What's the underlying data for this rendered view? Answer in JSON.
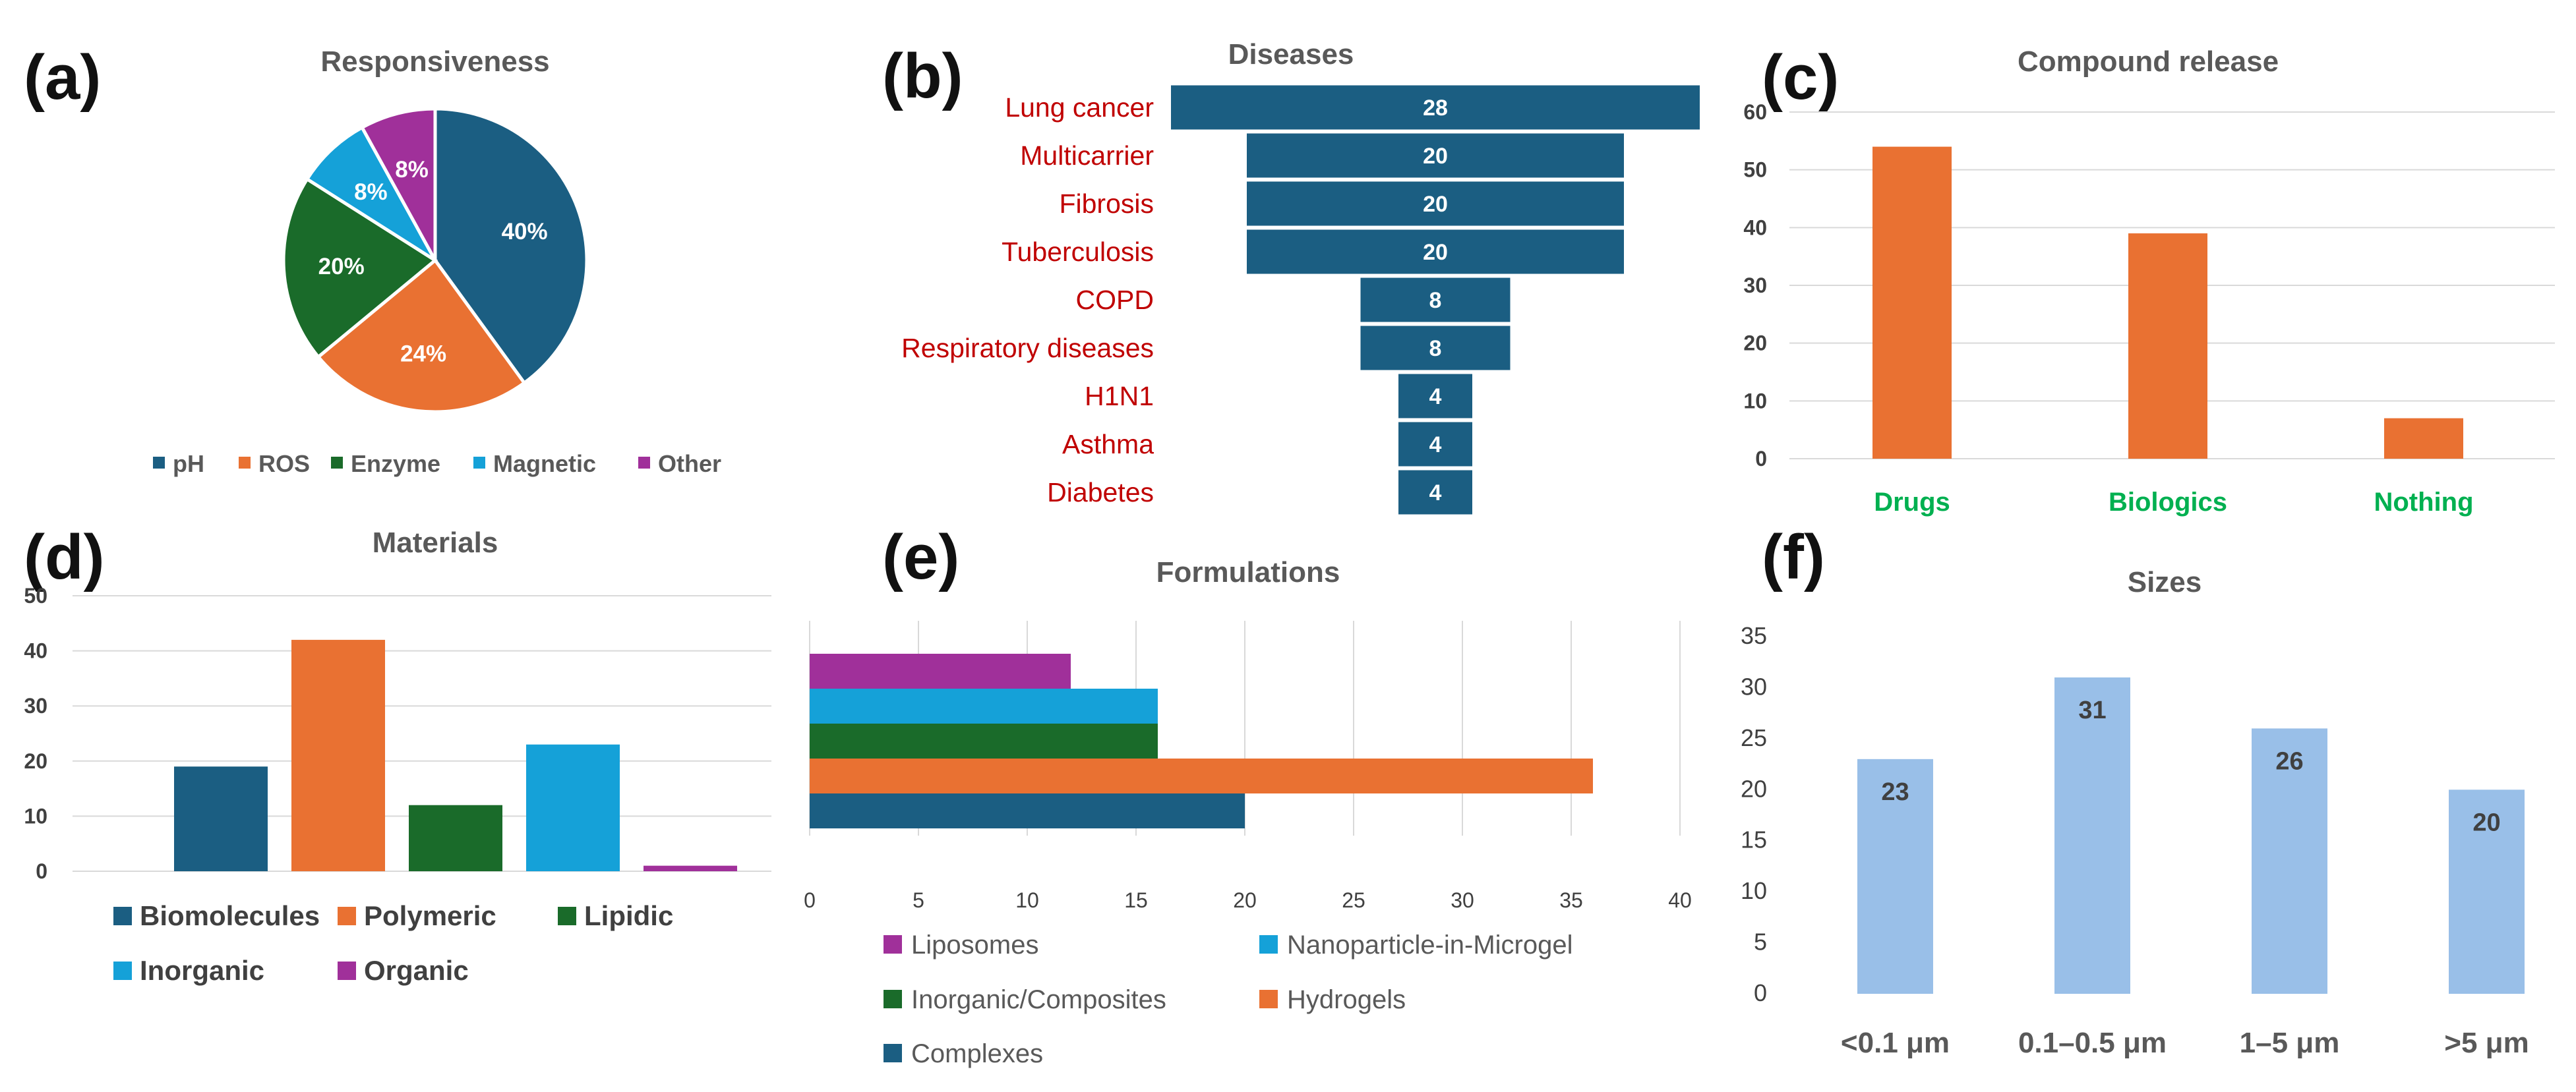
{
  "panel_labels": [
    "(a)",
    "(b)",
    "(c)",
    "(d)",
    "(e)",
    "(f)"
  ],
  "colors": {
    "blue": "#1b5e82",
    "orange": "#e97132",
    "green": "#1a6b2a",
    "cyan": "#15a1d8",
    "purple": "#a0309a",
    "lightblue": "#99bfe8",
    "red": "#c00000",
    "bright_green": "#00b050"
  },
  "chart_data": [
    {
      "type": "pie",
      "title": "Responsiveness",
      "labels": [
        "pH",
        "ROS",
        "Enzyme",
        "Magnetic",
        "Other"
      ],
      "values": [
        40,
        24,
        20,
        8,
        8
      ],
      "data_labels": [
        "40%",
        "24%",
        "20%",
        "8%",
        "8%"
      ],
      "legend": "bottom"
    },
    {
      "type": "bar",
      "subtype": "funnel",
      "title": "Diseases",
      "categories": [
        "Lung cancer",
        "Multicarrier",
        "Fibrosis",
        "Tuberculosis",
        "COPD",
        "Respiratory diseases",
        "H1N1",
        "Asthma",
        "Diabetes"
      ],
      "values": [
        28,
        20,
        20,
        20,
        8,
        8,
        4,
        4,
        4
      ]
    },
    {
      "type": "bar",
      "title": "Compound release",
      "categories": [
        "Drugs",
        "Biologics",
        "Nothing"
      ],
      "values": [
        54,
        39,
        7
      ],
      "ylim": [
        0,
        60
      ],
      "yticks": [
        "0",
        "10",
        "20",
        "30",
        "40",
        "50",
        "60"
      ],
      "grid": true
    },
    {
      "type": "bar",
      "title": "Materials",
      "categories": [
        "Biomolecules",
        "Polymeric",
        "Lipidic",
        "Inorganic",
        "Organic"
      ],
      "values": [
        19,
        42,
        12,
        23,
        1
      ],
      "ylim": [
        0,
        50
      ],
      "yticks": [
        "0",
        "10",
        "20",
        "30",
        "40",
        "50"
      ],
      "grid": true,
      "legend": "bottom"
    },
    {
      "type": "bar",
      "orientation": "horizontal",
      "title": "Formulations",
      "categories": [
        "Liposomes",
        "Nanoparticle-in-Microgel",
        "Inorganic/Composites",
        "Hydrogels",
        "Complexes"
      ],
      "values": [
        12,
        16,
        16,
        36,
        20
      ],
      "xlim": [
        0,
        40
      ],
      "xticks": [
        "0",
        "5",
        "10",
        "15",
        "20",
        "25",
        "30",
        "35",
        "40"
      ],
      "grid": true,
      "legend": "bottom"
    },
    {
      "type": "bar",
      "title": "Sizes",
      "categories": [
        "<0.1 μm",
        "0.1–0.5 μm",
        "1–5 μm",
        ">5 μm"
      ],
      "values": [
        23,
        31,
        26,
        20
      ],
      "data_labels": [
        "23",
        "31",
        "26",
        "20"
      ],
      "ylim": [
        0,
        35
      ],
      "yticks": [
        "0",
        "5",
        "10",
        "15",
        "20",
        "25",
        "30",
        "35"
      ]
    }
  ]
}
